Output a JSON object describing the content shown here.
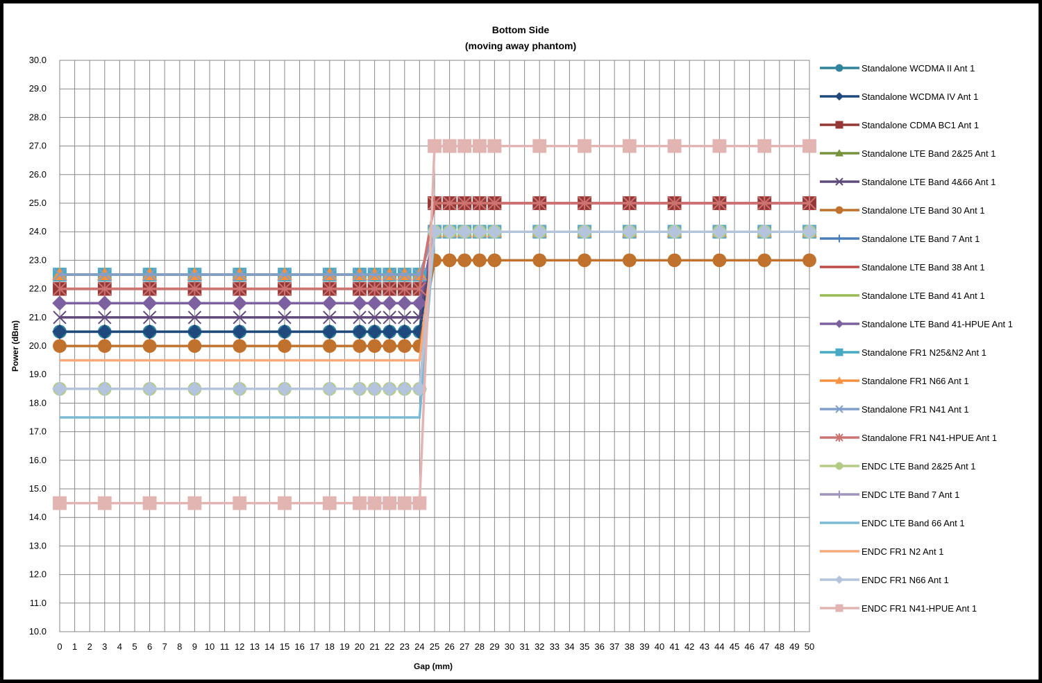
{
  "chart_data": {
    "type": "line",
    "title": "Bottom Side",
    "subtitle": "(moving away phantom)",
    "xlabel": "Gap (mm)",
    "ylabel": "Power (dBm)",
    "ylim": [
      10,
      30
    ],
    "yticks": [
      "10.0",
      "11.0",
      "12.0",
      "13.0",
      "14.0",
      "15.0",
      "16.0",
      "17.0",
      "18.0",
      "19.0",
      "20.0",
      "21.0",
      "22.0",
      "23.0",
      "24.0",
      "25.0",
      "26.0",
      "27.0",
      "28.0",
      "29.0",
      "30.0"
    ],
    "xtick_labels": [
      "0",
      "1",
      "2",
      "3",
      "4",
      "5",
      "6",
      "7",
      "8",
      "9",
      "10",
      "11",
      "12",
      "13",
      "14",
      "15",
      "16",
      "17",
      "18",
      "19",
      "20",
      "21",
      "22",
      "23",
      "24",
      "25",
      "26",
      "27",
      "28",
      "29",
      "30",
      "31",
      "32",
      "33",
      "34",
      "35",
      "36",
      "37",
      "38",
      "39",
      "40",
      "41",
      "42",
      "43",
      "44",
      "45",
      "46",
      "47",
      "48",
      "49",
      "50"
    ],
    "grid": true,
    "legend_position": "right",
    "x": [
      0,
      3,
      6,
      9,
      12,
      15,
      18,
      20,
      21,
      22,
      23,
      24,
      25,
      26,
      27,
      28,
      29,
      32,
      35,
      38,
      41,
      44,
      47,
      50
    ],
    "series": [
      {
        "name": "Standalone WCDMA II Ant 1",
        "color": "#31849B",
        "marker": "circle",
        "values": [
          20.5,
          20.5,
          20.5,
          20.5,
          20.5,
          20.5,
          20.5,
          20.5,
          20.5,
          20.5,
          20.5,
          20.5,
          24,
          24,
          24,
          24,
          24,
          24,
          24,
          24,
          24,
          24,
          24,
          24
        ]
      },
      {
        "name": "Standalone WCDMA IV Ant 1",
        "color": "#1F497D",
        "marker": "diamond",
        "values": [
          20.5,
          20.5,
          20.5,
          20.5,
          20.5,
          20.5,
          20.5,
          20.5,
          20.5,
          20.5,
          20.5,
          20.5,
          24,
          24,
          24,
          24,
          24,
          24,
          24,
          24,
          24,
          24,
          24,
          24
        ]
      },
      {
        "name": "Standalone CDMA BC1 Ant 1",
        "color": "#953735",
        "marker": "square",
        "values": [
          22,
          22,
          22,
          22,
          22,
          22,
          22,
          22,
          22,
          22,
          22,
          22,
          25,
          25,
          25,
          25,
          25,
          25,
          25,
          25,
          25,
          25,
          25,
          25
        ]
      },
      {
        "name": "Standalone LTE Band 2&25 Ant 1",
        "color": "#77933C",
        "marker": "triangle",
        "values": [
          22.5,
          22.5,
          22.5,
          22.5,
          22.5,
          22.5,
          22.5,
          22.5,
          22.5,
          22.5,
          22.5,
          22.5,
          24,
          24,
          24,
          24,
          24,
          24,
          24,
          24,
          24,
          24,
          24,
          24
        ]
      },
      {
        "name": "Standalone LTE Band 4&66 Ant 1",
        "color": "#604A7B",
        "marker": "x",
        "values": [
          21,
          21,
          21,
          21,
          21,
          21,
          21,
          21,
          21,
          21,
          21,
          21,
          24,
          24,
          24,
          24,
          24,
          24,
          24,
          24,
          24,
          24,
          24,
          24
        ]
      },
      {
        "name": "Standalone LTE Band 30 Ant 1",
        "color": "#C0722C",
        "marker": "circle",
        "values": [
          20,
          20,
          20,
          20,
          20,
          20,
          20,
          20,
          20,
          20,
          20,
          20,
          23,
          23,
          23,
          23,
          23,
          23,
          23,
          23,
          23,
          23,
          23,
          23
        ]
      },
      {
        "name": "Standalone LTE Band 7 Ant 1",
        "color": "#4A7EBB",
        "marker": "plus",
        "values": [
          22.5,
          22.5,
          22.5,
          22.5,
          22.5,
          22.5,
          22.5,
          22.5,
          22.5,
          22.5,
          22.5,
          22.5,
          24,
          24,
          24,
          24,
          24,
          24,
          24,
          24,
          24,
          24,
          24,
          24
        ]
      },
      {
        "name": "Standalone LTE Band 38 Ant 1",
        "color": "#BE4B48",
        "marker": "none",
        "values": [
          22,
          22,
          22,
          22,
          22,
          22,
          22,
          22,
          22,
          22,
          22,
          22,
          25,
          25,
          25,
          25,
          25,
          25,
          25,
          25,
          25,
          25,
          25,
          25
        ]
      },
      {
        "name": "Standalone LTE Band 41 Ant 1",
        "color": "#98B954",
        "marker": "none",
        "values": [
          22.5,
          22.5,
          22.5,
          22.5,
          22.5,
          22.5,
          22.5,
          22.5,
          22.5,
          22.5,
          22.5,
          22.5,
          24,
          24,
          24,
          24,
          24,
          24,
          24,
          24,
          24,
          24,
          24,
          24
        ]
      },
      {
        "name": "Standalone LTE Band 41-HPUE Ant 1",
        "color": "#7D60A0",
        "marker": "diamond",
        "values": [
          21.5,
          21.5,
          21.5,
          21.5,
          21.5,
          21.5,
          21.5,
          21.5,
          21.5,
          21.5,
          21.5,
          21.5,
          24,
          24,
          24,
          24,
          24,
          24,
          24,
          24,
          24,
          24,
          24,
          24
        ]
      },
      {
        "name": "Standalone FR1 N25&N2 Ant 1",
        "color": "#46AAC5",
        "marker": "square",
        "values": [
          22.5,
          22.5,
          22.5,
          22.5,
          22.5,
          22.5,
          22.5,
          22.5,
          22.5,
          22.5,
          22.5,
          22.5,
          24,
          24,
          24,
          24,
          24,
          24,
          24,
          24,
          24,
          24,
          24,
          24
        ]
      },
      {
        "name": "Standalone FR1 N66 Ant 1",
        "color": "#F69240",
        "marker": "triangle",
        "values": [
          22.5,
          22.5,
          22.5,
          22.5,
          22.5,
          22.5,
          22.5,
          22.5,
          22.5,
          22.5,
          22.5,
          22.5,
          24,
          24,
          24,
          24,
          24,
          24,
          24,
          24,
          24,
          24,
          24,
          24
        ]
      },
      {
        "name": "Standalone FR1 N41 Ant 1",
        "color": "#7F9FCC",
        "marker": "x",
        "values": [
          22.5,
          22.5,
          22.5,
          22.5,
          22.5,
          22.5,
          22.5,
          22.5,
          22.5,
          22.5,
          22.5,
          22.5,
          24,
          24,
          24,
          24,
          24,
          24,
          24,
          24,
          24,
          24,
          24,
          24
        ]
      },
      {
        "name": "Standalone FR1 N41-HPUE Ant 1",
        "color": "#CD7371",
        "marker": "star",
        "values": [
          22,
          22,
          22,
          22,
          22,
          22,
          22,
          22,
          22,
          22,
          22,
          22,
          25,
          25,
          25,
          25,
          25,
          25,
          25,
          25,
          25,
          25,
          25,
          25
        ]
      },
      {
        "name": "ENDC LTE Band 2&25 Ant 1",
        "color": "#B3CB85",
        "marker": "circle",
        "values": [
          18.5,
          18.5,
          18.5,
          18.5,
          18.5,
          18.5,
          18.5,
          18.5,
          18.5,
          18.5,
          18.5,
          18.5,
          24,
          24,
          24,
          24,
          24,
          24,
          24,
          24,
          24,
          24,
          24,
          24
        ]
      },
      {
        "name": "ENDC LTE Band 7 Ant 1",
        "color": "#A193BB",
        "marker": "plus",
        "values": [
          18.5,
          18.5,
          18.5,
          18.5,
          18.5,
          18.5,
          18.5,
          18.5,
          18.5,
          18.5,
          18.5,
          18.5,
          24,
          24,
          24,
          24,
          24,
          24,
          24,
          24,
          24,
          24,
          24,
          24
        ]
      },
      {
        "name": "ENDC LTE Band 66 Ant 1",
        "color": "#7CB9D4",
        "marker": "none",
        "values": [
          17.5,
          17.5,
          17.5,
          17.5,
          17.5,
          17.5,
          17.5,
          17.5,
          17.5,
          17.5,
          17.5,
          17.5,
          24,
          24,
          24,
          24,
          24,
          24,
          24,
          24,
          24,
          24,
          24,
          24
        ]
      },
      {
        "name": "ENDC FR1 N2 Ant 1",
        "color": "#F9A97A",
        "marker": "none",
        "values": [
          19.5,
          19.5,
          19.5,
          19.5,
          19.5,
          19.5,
          19.5,
          19.5,
          19.5,
          19.5,
          19.5,
          19.5,
          24,
          24,
          24,
          24,
          24,
          24,
          24,
          24,
          24,
          24,
          24,
          24
        ]
      },
      {
        "name": "ENDC FR1 N66 Ant 1",
        "color": "#B5C4DD",
        "marker": "diamond",
        "values": [
          18.5,
          18.5,
          18.5,
          18.5,
          18.5,
          18.5,
          18.5,
          18.5,
          18.5,
          18.5,
          18.5,
          18.5,
          24,
          24,
          24,
          24,
          24,
          24,
          24,
          24,
          24,
          24,
          24,
          24
        ]
      },
      {
        "name": "ENDC FR1 N41-HPUE Ant 1",
        "color": "#E2B5B3",
        "marker": "square",
        "values": [
          14.5,
          14.5,
          14.5,
          14.5,
          14.5,
          14.5,
          14.5,
          14.5,
          14.5,
          14.5,
          14.5,
          14.5,
          27,
          27,
          27,
          27,
          27,
          27,
          27,
          27,
          27,
          27,
          27,
          27
        ]
      }
    ]
  }
}
